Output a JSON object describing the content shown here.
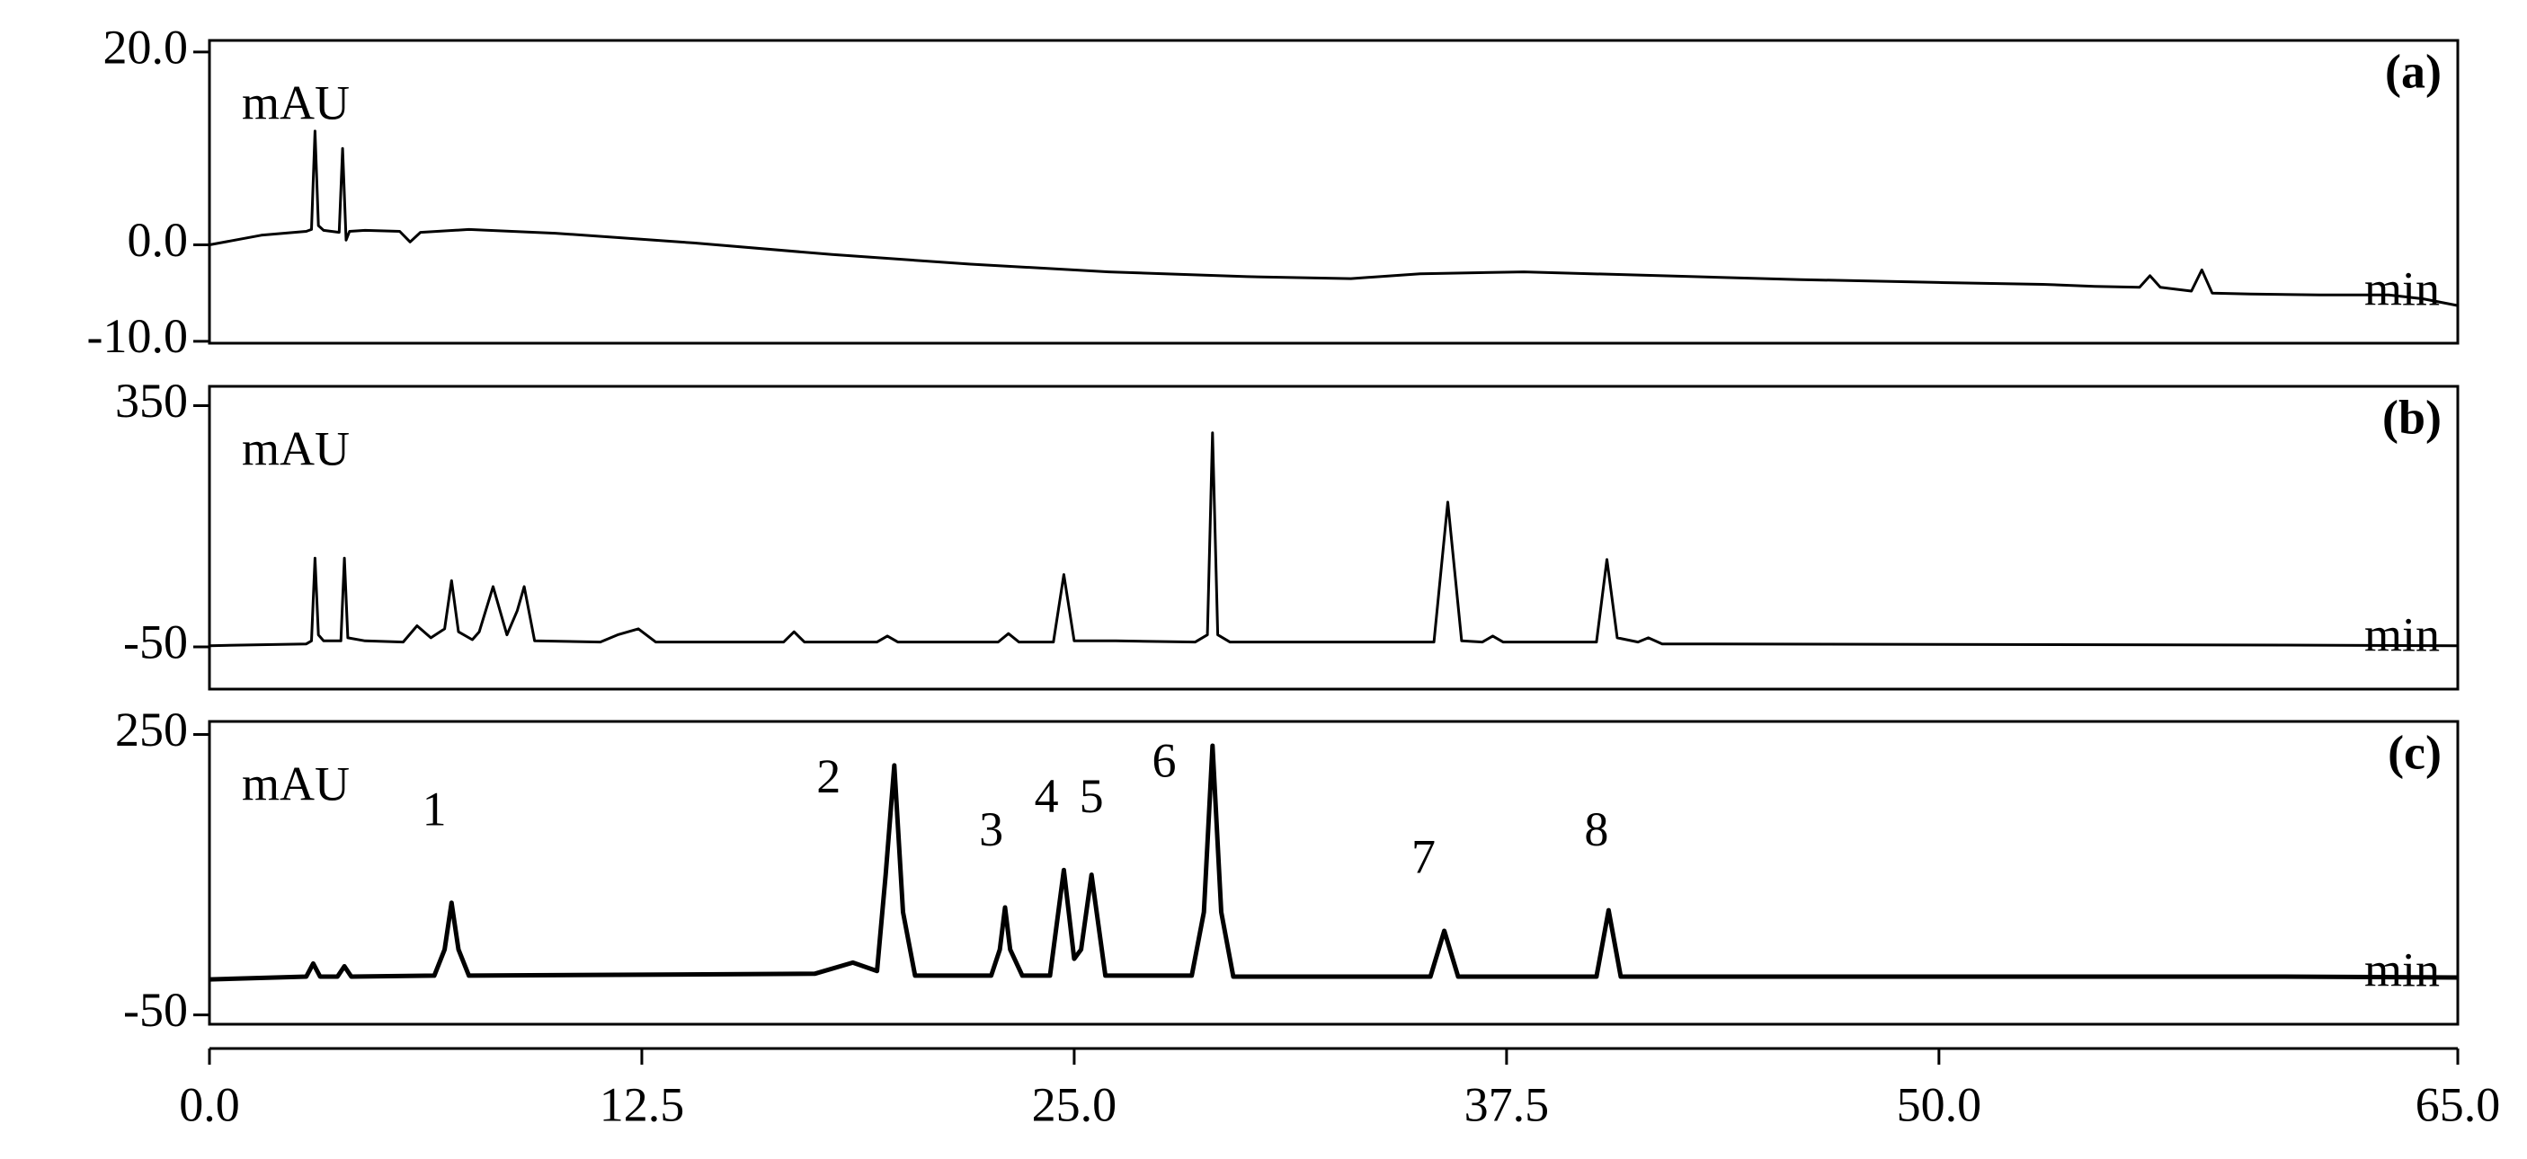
{
  "chart_data": [
    {
      "type": "line",
      "panel_label": "(a)",
      "y_label": "mAU",
      "x_label": "min",
      "xlim": [
        0,
        65
      ],
      "ylim": [
        -10.2,
        21.2
      ],
      "yticks": [
        {
          "value": 20,
          "label": "20.0"
        },
        {
          "value": 0,
          "label": "0.0"
        },
        {
          "value": -10,
          "label": "-10.0"
        }
      ],
      "x": [
        0,
        1.5,
        2.8,
        2.95,
        3.05,
        3.15,
        3.3,
        3.75,
        3.85,
        3.95,
        4.05,
        4.5,
        5.5,
        5.8,
        6.1,
        7.5,
        10,
        14,
        18,
        22,
        26,
        30,
        33,
        35,
        38,
        42,
        46,
        50,
        53,
        54.5,
        55.8,
        56.1,
        56.4,
        57.3,
        57.6,
        57.9,
        59,
        61,
        63,
        64,
        65
      ],
      "series": [
        {
          "color": "#000000",
          "values": [
            0,
            1.0,
            1.4,
            1.6,
            11.8,
            2.0,
            1.5,
            1.3,
            10.0,
            0.5,
            1.4,
            1.5,
            1.4,
            0.3,
            1.3,
            1.6,
            1.2,
            0.2,
            -1.0,
            -2.0,
            -2.8,
            -3.3,
            -3.5,
            -3.0,
            -2.8,
            -3.2,
            -3.6,
            -3.9,
            -4.1,
            -4.3,
            -4.4,
            -3.2,
            -4.4,
            -4.8,
            -2.6,
            -5.0,
            -5.1,
            -5.2,
            -5.2,
            -5.6,
            -6.3
          ]
        }
      ]
    },
    {
      "type": "line",
      "panel_label": "(b)",
      "y_label": "mAU",
      "x_label": "min",
      "xlim": [
        0,
        65
      ],
      "ylim": [
        -120,
        382
      ],
      "yticks": [
        350,
        -50
      ],
      "x": [
        0,
        2.8,
        2.95,
        3.05,
        3.15,
        3.3,
        3.8,
        3.9,
        4.0,
        4.5,
        5.6,
        6.0,
        6.4,
        6.8,
        7.0,
        7.2,
        7.6,
        7.8,
        8.2,
        8.6,
        8.9,
        9.1,
        9.4,
        11.3,
        11.8,
        12.4,
        12.9,
        16.6,
        16.9,
        17.2,
        19.3,
        19.6,
        19.9,
        22.8,
        23.1,
        23.4,
        24.4,
        24.7,
        25.0,
        26.2,
        28.5,
        28.85,
        29.0,
        29.15,
        29.5,
        35.4,
        35.8,
        36.2,
        36.8,
        37.1,
        37.4,
        40.1,
        40.4,
        40.7,
        41.3,
        41.6,
        42,
        50,
        60,
        65
      ],
      "series": [
        {
          "color": "#000000",
          "values": [
            -48,
            -45,
            -40,
            97,
            -30,
            -40,
            -40,
            97,
            -35,
            -40,
            -42,
            -15,
            -35,
            -20,
            60,
            -25,
            -38,
            -25,
            50,
            -30,
            10,
            50,
            -40,
            -42,
            -30,
            -20,
            -42,
            -42,
            -25,
            -42,
            -42,
            -32,
            -42,
            -42,
            -28,
            -42,
            -42,
            70,
            -40,
            -40,
            -42,
            -30,
            305,
            -30,
            -42,
            -42,
            190,
            -40,
            -42,
            -32,
            -42,
            -42,
            95,
            -35,
            -42,
            -35,
            -45,
            -46,
            -47,
            -48
          ]
        }
      ]
    },
    {
      "type": "line",
      "panel_label": "(c)",
      "y_label": "mAU",
      "x_label": "min",
      "xlim": [
        0,
        65
      ],
      "ylim": [
        -60,
        264
      ],
      "yticks": [
        250,
        -50
      ],
      "xticks": [
        {
          "value": 0,
          "label": "0.0"
        },
        12.5,
        {
          "value": 25,
          "label": "25.0"
        },
        37.5,
        {
          "value": 50,
          "label": "50.0"
        },
        {
          "value": 65,
          "label": "65.0"
        }
      ],
      "x": [
        0,
        2.8,
        3.0,
        3.2,
        3.7,
        3.9,
        4.1,
        6.5,
        6.8,
        7.0,
        7.2,
        7.5,
        17.5,
        18.6,
        19.3,
        19.55,
        19.8,
        20.05,
        20.4,
        22.6,
        22.85,
        23.0,
        23.15,
        23.5,
        24.3,
        24.7,
        25.0,
        25.2,
        25.5,
        25.9,
        28.4,
        28.75,
        29.0,
        29.25,
        29.6,
        35.3,
        35.7,
        36.1,
        40.1,
        40.45,
        40.8,
        50,
        60,
        65
      ],
      "series": [
        {
          "color": "#000000",
          "values": [
            -12,
            -9,
            5,
            -9,
            -9,
            2,
            -9,
            -8,
            20,
            70,
            20,
            -8,
            -6,
            6,
            -3,
            100,
            217,
            60,
            -8,
            -8,
            20,
            65,
            20,
            -8,
            -8,
            105,
            10,
            20,
            100,
            -8,
            -8,
            60,
            238,
            60,
            -9,
            -9,
            40,
            -9,
            -9,
            62,
            -9,
            -9,
            -9,
            -10
          ]
        }
      ],
      "annotations": [
        {
          "text": "1",
          "x": 6.5,
          "y": 165
        },
        {
          "text": "2",
          "x": 17.9,
          "y": 200
        },
        {
          "text": "3",
          "x": 22.6,
          "y": 143
        },
        {
          "text": "4",
          "x": 24.2,
          "y": 179
        },
        {
          "text": "5",
          "x": 25.5,
          "y": 179
        },
        {
          "text": "6",
          "x": 27.6,
          "y": 217
        },
        {
          "text": "7",
          "x": 35.1,
          "y": 114
        },
        {
          "text": "8",
          "x": 40.1,
          "y": 143
        }
      ]
    }
  ]
}
